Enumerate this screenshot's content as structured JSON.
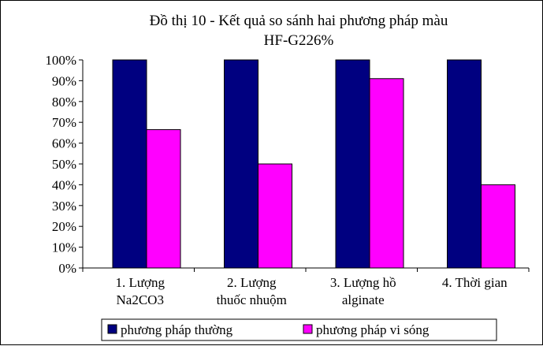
{
  "chart_data": {
    "type": "bar",
    "title_lines": [
      "Đồ thị 10 - Kết quả so sánh hai phương pháp màu",
      "HF-G226%"
    ],
    "categories": [
      [
        "1. Lượng",
        "Na2CO3"
      ],
      [
        "2. Lượng",
        "thuốc nhuộm"
      ],
      [
        "3. Lượng hồ",
        "alginate"
      ],
      [
        "4. Thời gian"
      ]
    ],
    "series": [
      {
        "name": "phương pháp thường",
        "color": "#000080",
        "values": [
          100,
          100,
          100,
          100
        ]
      },
      {
        "name": "phương pháp vi sóng",
        "color": "#FF00FF",
        "values": [
          66.5,
          50,
          91,
          40
        ]
      }
    ],
    "y_ticks": [
      "0%",
      "10%",
      "20%",
      "30%",
      "40%",
      "50%",
      "60%",
      "70%",
      "80%",
      "90%",
      "100%"
    ],
    "ylim": [
      0,
      100
    ],
    "grid": false,
    "legend_position": "bottom"
  }
}
